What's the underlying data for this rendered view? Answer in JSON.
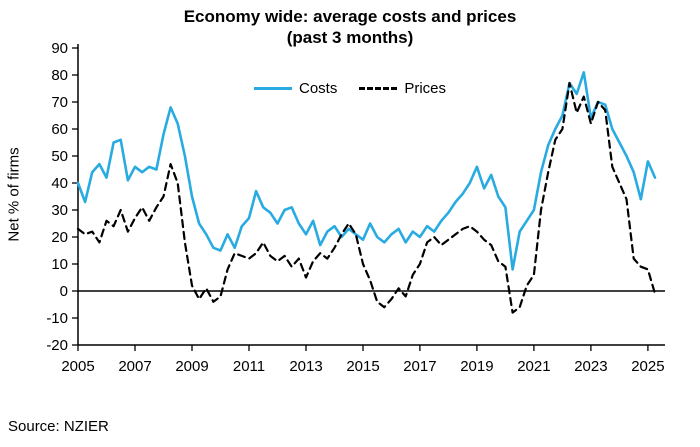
{
  "title": {
    "line1": "Economy wide: average costs and prices",
    "line2": "(past 3 months)"
  },
  "source": "Source: NZIER",
  "chart_data": {
    "type": "line",
    "title": "Economy wide: average costs and prices (past 3 months)",
    "xlabel": "",
    "ylabel": "Net % of firms",
    "ylim": [
      -20,
      90
    ],
    "yticks": [
      90,
      80,
      70,
      60,
      50,
      40,
      30,
      20,
      10,
      0,
      -10,
      -20
    ],
    "xticks": [
      2005,
      2007,
      2009,
      2011,
      2013,
      2015,
      2017,
      2019,
      2021,
      2023,
      2025
    ],
    "x_start": 2005.0,
    "x_step": 0.25,
    "x_max": 2025.6,
    "grid": false,
    "legend_position": "top-center",
    "zero_line": true,
    "series": [
      {
        "name": "Costs",
        "color": "#29ABE2",
        "style": "solid",
        "width": 2.6,
        "values": [
          40,
          33,
          44,
          47,
          42,
          55,
          56,
          41,
          46,
          44,
          46,
          45,
          58,
          68,
          62,
          50,
          35,
          25,
          21,
          16,
          15,
          21,
          16,
          24,
          27,
          37,
          31,
          29,
          25,
          30,
          31,
          25,
          21,
          26,
          17,
          22,
          24,
          20,
          23,
          21,
          19,
          25,
          20,
          18,
          21,
          23,
          18,
          22,
          20,
          24,
          22,
          26,
          29,
          33,
          36,
          40,
          46,
          38,
          43,
          35,
          31,
          8,
          22,
          26,
          30,
          44,
          54,
          60,
          65,
          77,
          73,
          81,
          64,
          70,
          69,
          60,
          55,
          50,
          44,
          34,
          48,
          42
        ]
      },
      {
        "name": "Prices",
        "color": "#000000",
        "style": "dashed",
        "width": 2.2,
        "dash": "7,5",
        "values": [
          23,
          21,
          22,
          18,
          26,
          24,
          30,
          22,
          27,
          31,
          26,
          31,
          35,
          47,
          40,
          18,
          2,
          -3,
          1,
          -4,
          -2,
          8,
          14,
          13,
          12,
          14,
          18,
          13,
          11,
          13,
          9,
          12,
          5,
          11,
          14,
          12,
          16,
          21,
          25,
          21,
          10,
          4,
          -4,
          -6,
          -3,
          1,
          -2,
          6,
          10,
          18,
          20,
          17,
          19,
          21,
          23,
          24,
          22,
          19,
          17,
          11,
          9,
          -8,
          -6,
          2,
          6,
          30,
          44,
          56,
          60,
          77,
          66,
          72,
          62,
          70,
          67,
          46,
          40,
          34,
          12,
          9,
          8,
          -1
        ]
      }
    ]
  }
}
